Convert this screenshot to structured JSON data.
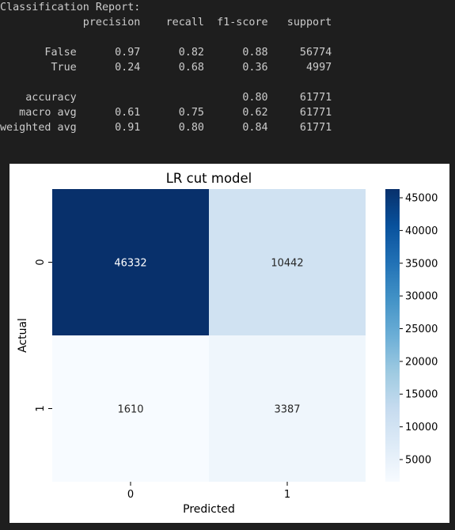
{
  "report": {
    "title": "Classification Report:",
    "columns": [
      "precision",
      "recall",
      "f1-score",
      "support"
    ],
    "rows": [
      {
        "label": "False",
        "precision": "0.97",
        "recall": "0.82",
        "f1": "0.88",
        "support": "56774"
      },
      {
        "label": "True",
        "precision": "0.24",
        "recall": "0.68",
        "f1": "0.36",
        "support": "4997"
      }
    ],
    "summary": [
      {
        "label": "accuracy",
        "precision": "",
        "recall": "",
        "f1": "0.80",
        "support": "61771"
      },
      {
        "label": "macro avg",
        "precision": "0.61",
        "recall": "0.75",
        "f1": "0.62",
        "support": "61771"
      },
      {
        "label": "weighted avg",
        "precision": "0.91",
        "recall": "0.80",
        "f1": "0.84",
        "support": "61771"
      }
    ]
  },
  "chart_data": {
    "type": "heatmap",
    "title": "LR cut model",
    "xlabel": "Predicted",
    "ylabel": "Actual",
    "x_categories": [
      "0",
      "1"
    ],
    "y_categories": [
      "0",
      "1"
    ],
    "values": [
      [
        46332,
        10442
      ],
      [
        1610,
        3387
      ]
    ],
    "colormap": "Blues",
    "colorbar": {
      "range": [
        1610,
        46332
      ],
      "ticks": [
        5000,
        10000,
        15000,
        20000,
        25000,
        30000,
        35000,
        40000,
        45000
      ]
    }
  }
}
